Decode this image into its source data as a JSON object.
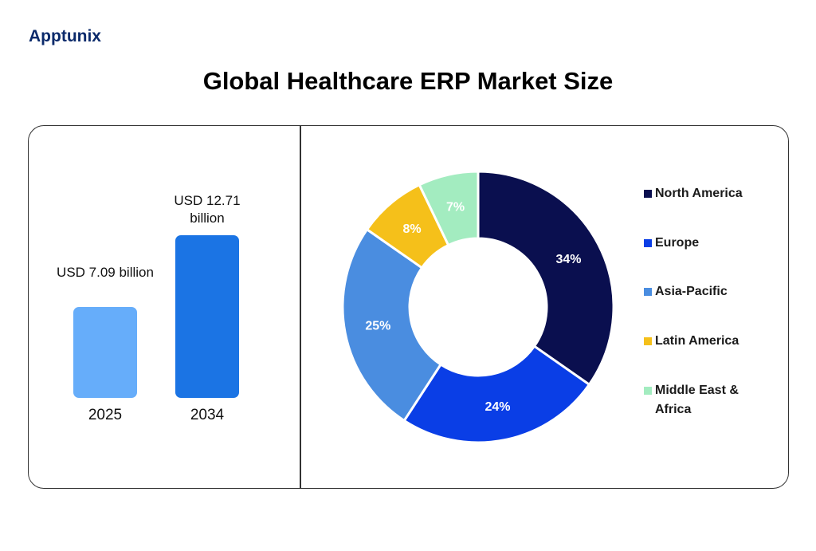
{
  "header": {
    "logo": "Apptunix",
    "title": "Global Healthcare ERP Market Size"
  },
  "chart_data": [
    {
      "type": "bar",
      "categories": [
        "2025",
        "2034"
      ],
      "values": [
        7.09,
        12.71
      ],
      "value_labels": [
        "USD 7.09 billion",
        "USD 12.71 billion"
      ],
      "colors": [
        "#66adfa",
        "#1b74e4"
      ],
      "ylim": [
        0,
        14
      ]
    },
    {
      "type": "donut",
      "categories": [
        "North America",
        "Europe",
        "Asia-Pacific",
        "Latin America",
        "Middle East & Africa"
      ],
      "values": [
        34,
        24,
        25,
        8,
        7
      ],
      "value_labels": [
        "34%",
        "24%",
        "25%",
        "8%",
        "7%"
      ],
      "colors": [
        "#0a0f4f",
        "#0a3ee6",
        "#4a8de0",
        "#f5c01a",
        "#a3ecc0"
      ],
      "legend": "right"
    }
  ]
}
